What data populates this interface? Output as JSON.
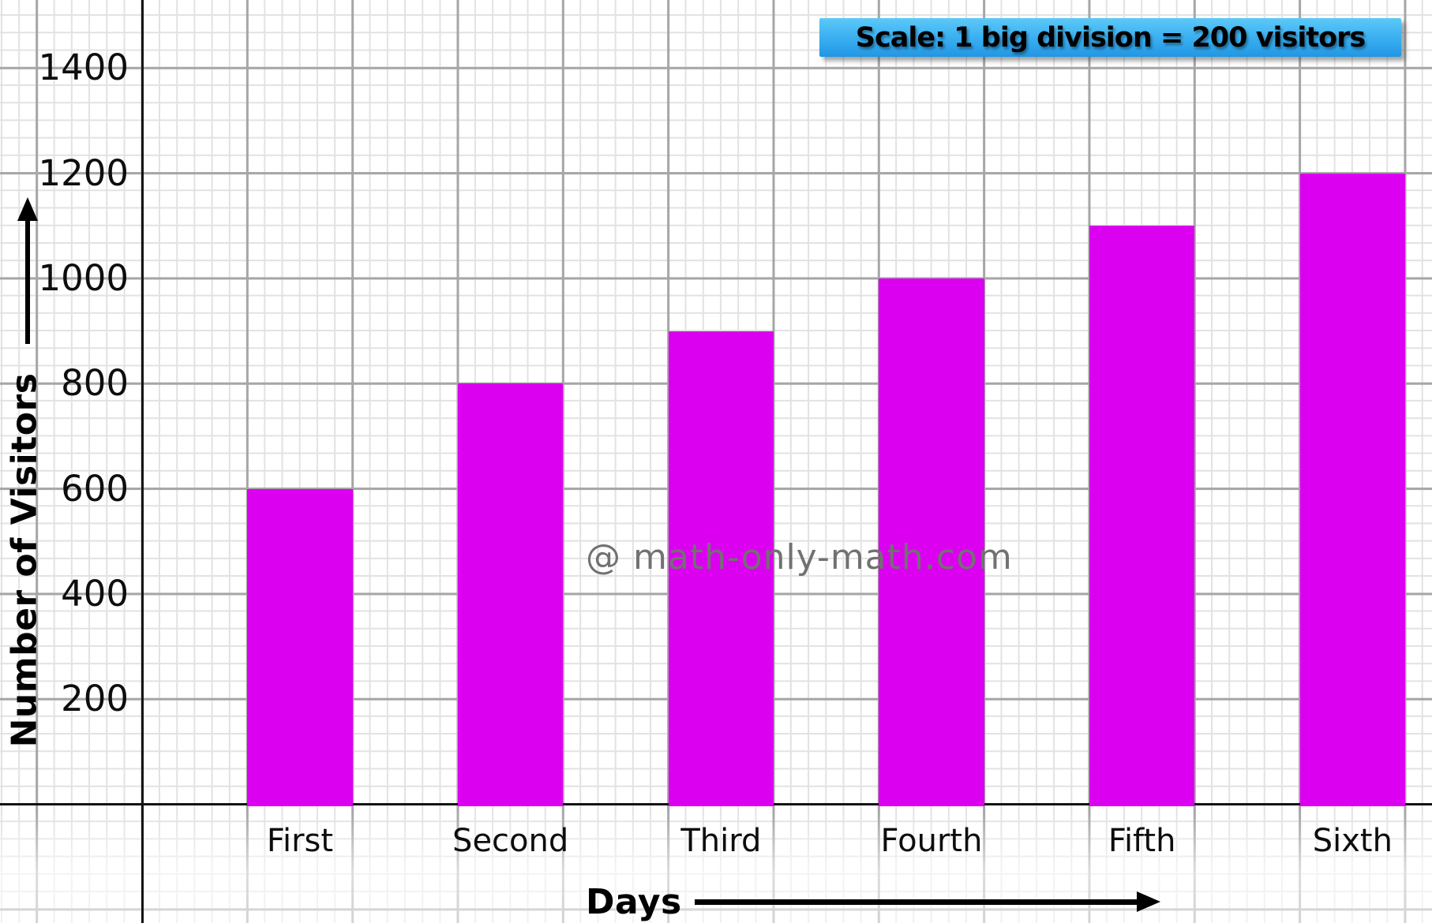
{
  "chart_data": {
    "type": "bar",
    "title": "",
    "scale_note": "Scale: 1 big division = 200 visitors",
    "watermark": "@ math-only-math.com",
    "xlabel": "Days",
    "ylabel": "Number of Visitors",
    "categories": [
      "First",
      "Second",
      "Third",
      "Fourth",
      "Fifth",
      "Sixth"
    ],
    "values": [
      600,
      800,
      900,
      1000,
      1100,
      1200
    ],
    "y_ticks": [
      200,
      400,
      600,
      800,
      1000,
      1200,
      1400
    ],
    "ylim": [
      0,
      1500
    ],
    "visitors_per_big_division": 200,
    "bar_color": "#DC00F0",
    "grid": "graph-paper with major and minor gridlines",
    "legend_position": "top-right"
  }
}
